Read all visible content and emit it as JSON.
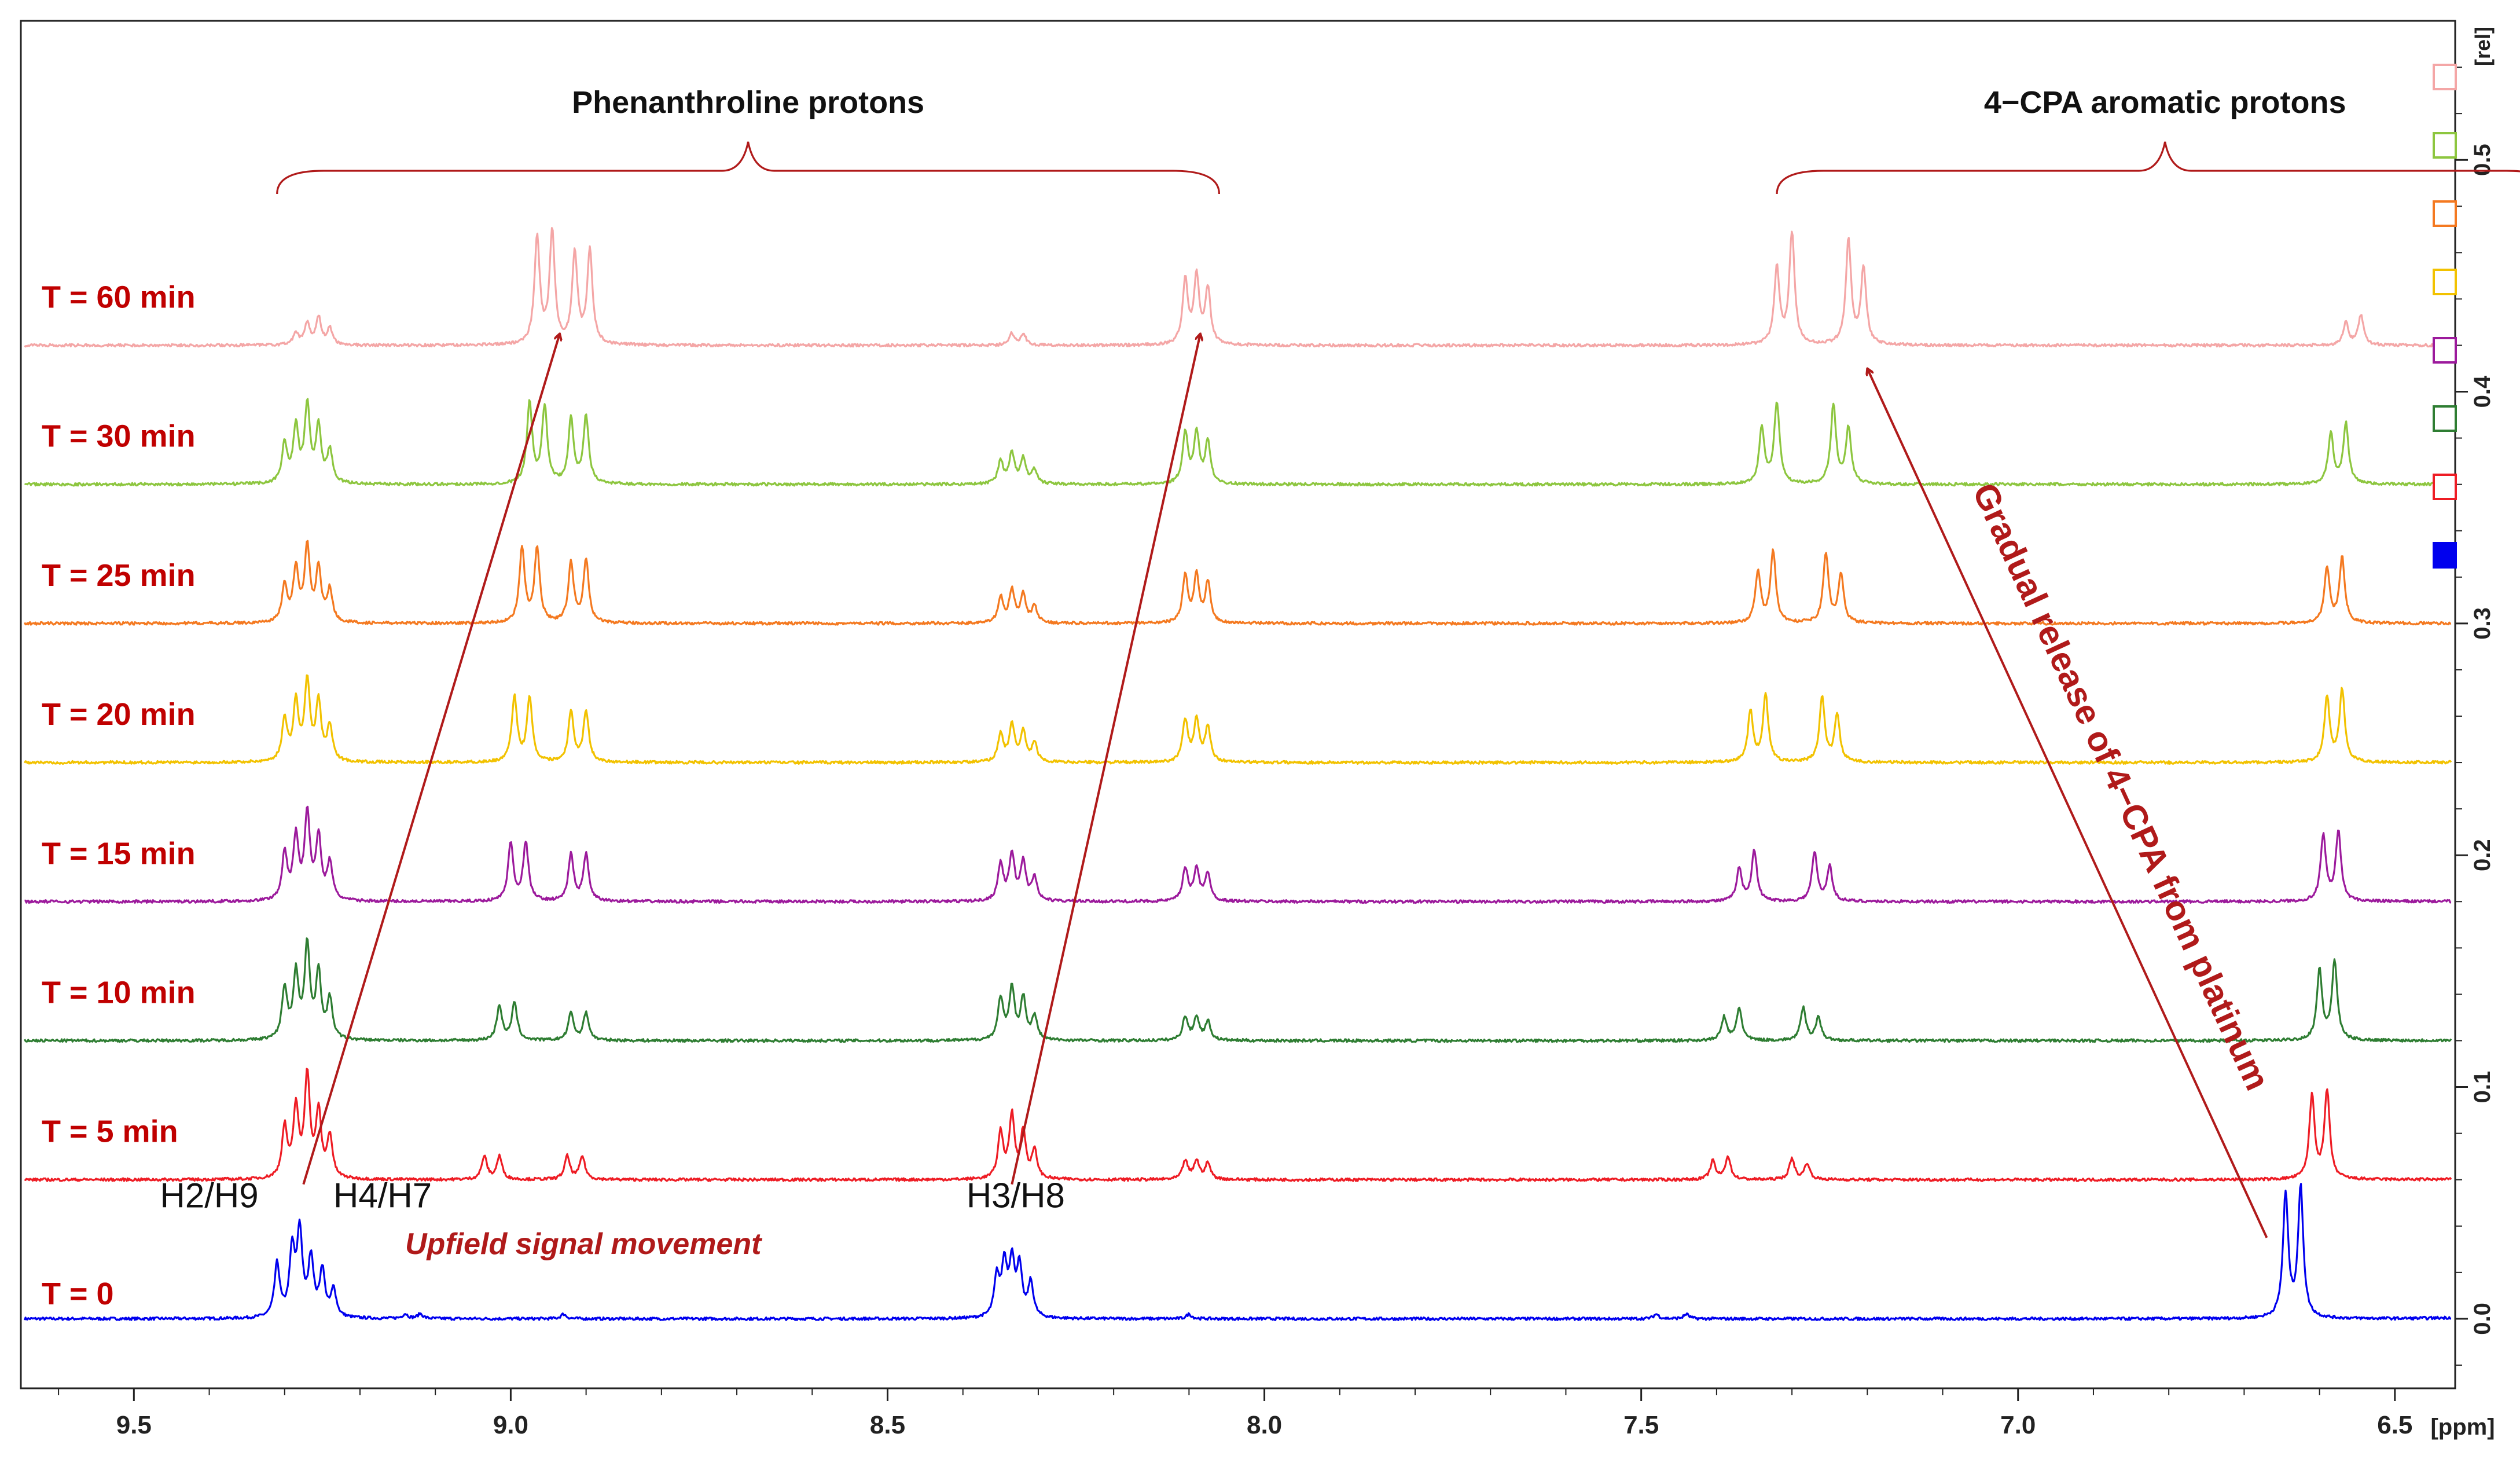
{
  "chart_data": {
    "type": "line",
    "x_axis": {
      "label": "[ppm]",
      "range": [
        9.65,
        6.42
      ],
      "reversed": true,
      "ticks": [
        "9.5",
        "9.0",
        "8.5",
        "8.0",
        "7.5",
        "7.0",
        "6.5"
      ],
      "tick_values": [
        9.5,
        9.0,
        8.5,
        8.0,
        7.5,
        7.0,
        6.5
      ]
    },
    "y_axis": {
      "label": "[rel]",
      "range": [
        -0.03,
        0.56
      ],
      "ticks": [
        "0.0",
        "0.1",
        "0.2",
        "0.3",
        "0.4",
        "0.5"
      ],
      "tick_values": [
        0.0,
        0.1,
        0.2,
        0.3,
        0.4,
        0.5
      ],
      "position": "right"
    },
    "group_labels": [
      "Phenanthroline protons",
      "4−CPA aromatic protons"
    ],
    "group_ranges": [
      [
        9.31,
        8.06
      ],
      [
        7.32,
        6.29
      ]
    ],
    "series": [
      {
        "name": "T = 0",
        "color": "#0000ee",
        "offset": 0.0,
        "peaks": [
          {
            "ppm": 9.31,
            "h": 0.023
          },
          {
            "ppm": 9.29,
            "h": 0.028
          },
          {
            "ppm": 9.28,
            "h": 0.036
          },
          {
            "ppm": 9.265,
            "h": 0.025
          },
          {
            "ppm": 9.25,
            "h": 0.02
          },
          {
            "ppm": 9.235,
            "h": 0.012
          },
          {
            "ppm": 9.14,
            "h": 0.002
          },
          {
            "ppm": 9.12,
            "h": 0.002
          },
          {
            "ppm": 8.93,
            "h": 0.002
          },
          {
            "ppm": 8.355,
            "h": 0.017
          },
          {
            "ppm": 8.345,
            "h": 0.022
          },
          {
            "ppm": 8.335,
            "h": 0.023
          },
          {
            "ppm": 8.325,
            "h": 0.021
          },
          {
            "ppm": 8.31,
            "h": 0.015
          },
          {
            "ppm": 8.1,
            "h": 0.002
          },
          {
            "ppm": 7.48,
            "h": 0.002
          },
          {
            "ppm": 7.44,
            "h": 0.002
          },
          {
            "ppm": 6.645,
            "h": 0.053
          },
          {
            "ppm": 6.625,
            "h": 0.056
          },
          {
            "ppm": 6.375,
            "h": 0.053
          },
          {
            "ppm": 6.355,
            "h": 0.051
          }
        ]
      },
      {
        "name": "T = 5 min",
        "color": "#ee1c24",
        "offset": 0.06,
        "peaks": [
          {
            "ppm": 9.3,
            "h": 0.022
          },
          {
            "ppm": 9.285,
            "h": 0.03
          },
          {
            "ppm": 9.27,
            "h": 0.044
          },
          {
            "ppm": 9.255,
            "h": 0.028
          },
          {
            "ppm": 9.24,
            "h": 0.018
          },
          {
            "ppm": 9.035,
            "h": 0.01
          },
          {
            "ppm": 9.015,
            "h": 0.01
          },
          {
            "ppm": 8.925,
            "h": 0.01
          },
          {
            "ppm": 8.905,
            "h": 0.01
          },
          {
            "ppm": 8.35,
            "h": 0.02
          },
          {
            "ppm": 8.335,
            "h": 0.027
          },
          {
            "ppm": 8.32,
            "h": 0.02
          },
          {
            "ppm": 8.305,
            "h": 0.012
          },
          {
            "ppm": 8.105,
            "h": 0.008
          },
          {
            "ppm": 8.09,
            "h": 0.008
          },
          {
            "ppm": 8.075,
            "h": 0.007
          },
          {
            "ppm": 7.405,
            "h": 0.008
          },
          {
            "ppm": 7.385,
            "h": 0.01
          },
          {
            "ppm": 7.3,
            "h": 0.009
          },
          {
            "ppm": 7.28,
            "h": 0.007
          },
          {
            "ppm": 6.61,
            "h": 0.036
          },
          {
            "ppm": 6.59,
            "h": 0.038
          },
          {
            "ppm": 6.355,
            "h": 0.038
          },
          {
            "ppm": 6.335,
            "h": 0.035
          }
        ]
      },
      {
        "name": "T = 10 min",
        "color": "#2e7d32",
        "offset": 0.12,
        "peaks": [
          {
            "ppm": 9.3,
            "h": 0.022
          },
          {
            "ppm": 9.285,
            "h": 0.028
          },
          {
            "ppm": 9.27,
            "h": 0.04
          },
          {
            "ppm": 9.255,
            "h": 0.028
          },
          {
            "ppm": 9.24,
            "h": 0.017
          },
          {
            "ppm": 9.015,
            "h": 0.015
          },
          {
            "ppm": 8.995,
            "h": 0.016
          },
          {
            "ppm": 8.92,
            "h": 0.012
          },
          {
            "ppm": 8.9,
            "h": 0.012
          },
          {
            "ppm": 8.35,
            "h": 0.018
          },
          {
            "ppm": 8.335,
            "h": 0.022
          },
          {
            "ppm": 8.32,
            "h": 0.018
          },
          {
            "ppm": 8.305,
            "h": 0.01
          },
          {
            "ppm": 8.105,
            "h": 0.01
          },
          {
            "ppm": 8.09,
            "h": 0.01
          },
          {
            "ppm": 8.075,
            "h": 0.008
          },
          {
            "ppm": 7.39,
            "h": 0.01
          },
          {
            "ppm": 7.37,
            "h": 0.014
          },
          {
            "ppm": 7.285,
            "h": 0.014
          },
          {
            "ppm": 7.265,
            "h": 0.01
          },
          {
            "ppm": 6.6,
            "h": 0.03
          },
          {
            "ppm": 6.58,
            "h": 0.034
          },
          {
            "ppm": 6.345,
            "h": 0.034
          },
          {
            "ppm": 6.325,
            "h": 0.031
          }
        ]
      },
      {
        "name": "T = 15 min",
        "color": "#9c1a9c",
        "offset": 0.18,
        "peaks": [
          {
            "ppm": 9.3,
            "h": 0.02
          },
          {
            "ppm": 9.285,
            "h": 0.027
          },
          {
            "ppm": 9.27,
            "h": 0.037
          },
          {
            "ppm": 9.255,
            "h": 0.027
          },
          {
            "ppm": 9.24,
            "h": 0.016
          },
          {
            "ppm": 9.0,
            "h": 0.025
          },
          {
            "ppm": 8.98,
            "h": 0.025
          },
          {
            "ppm": 8.92,
            "h": 0.02
          },
          {
            "ppm": 8.9,
            "h": 0.02
          },
          {
            "ppm": 8.35,
            "h": 0.016
          },
          {
            "ppm": 8.335,
            "h": 0.02
          },
          {
            "ppm": 8.32,
            "h": 0.017
          },
          {
            "ppm": 8.305,
            "h": 0.01
          },
          {
            "ppm": 8.105,
            "h": 0.014
          },
          {
            "ppm": 8.09,
            "h": 0.014
          },
          {
            "ppm": 8.075,
            "h": 0.012
          },
          {
            "ppm": 7.37,
            "h": 0.014
          },
          {
            "ppm": 7.35,
            "h": 0.022
          },
          {
            "ppm": 7.27,
            "h": 0.021
          },
          {
            "ppm": 7.25,
            "h": 0.015
          },
          {
            "ppm": 6.595,
            "h": 0.028
          },
          {
            "ppm": 6.575,
            "h": 0.03
          },
          {
            "ppm": 6.335,
            "h": 0.032
          },
          {
            "ppm": 6.315,
            "h": 0.029
          }
        ]
      },
      {
        "name": "T = 20 min",
        "color": "#f2c200",
        "offset": 0.24,
        "peaks": [
          {
            "ppm": 9.3,
            "h": 0.018
          },
          {
            "ppm": 9.285,
            "h": 0.025
          },
          {
            "ppm": 9.27,
            "h": 0.034
          },
          {
            "ppm": 9.255,
            "h": 0.025
          },
          {
            "ppm": 9.24,
            "h": 0.015
          },
          {
            "ppm": 8.995,
            "h": 0.028
          },
          {
            "ppm": 8.975,
            "h": 0.028
          },
          {
            "ppm": 8.92,
            "h": 0.022
          },
          {
            "ppm": 8.9,
            "h": 0.022
          },
          {
            "ppm": 8.35,
            "h": 0.012
          },
          {
            "ppm": 8.335,
            "h": 0.016
          },
          {
            "ppm": 8.32,
            "h": 0.013
          },
          {
            "ppm": 8.305,
            "h": 0.008
          },
          {
            "ppm": 8.105,
            "h": 0.018
          },
          {
            "ppm": 8.09,
            "h": 0.018
          },
          {
            "ppm": 8.075,
            "h": 0.015
          },
          {
            "ppm": 7.355,
            "h": 0.022
          },
          {
            "ppm": 7.335,
            "h": 0.029
          },
          {
            "ppm": 7.26,
            "h": 0.028
          },
          {
            "ppm": 7.24,
            "h": 0.02
          },
          {
            "ppm": 6.59,
            "h": 0.028
          },
          {
            "ppm": 6.57,
            "h": 0.031
          },
          {
            "ppm": 6.33,
            "h": 0.032
          },
          {
            "ppm": 6.31,
            "h": 0.028
          }
        ]
      },
      {
        "name": "T = 25 min",
        "color": "#f47920",
        "offset": 0.3,
        "peaks": [
          {
            "ppm": 9.3,
            "h": 0.016
          },
          {
            "ppm": 9.285,
            "h": 0.023
          },
          {
            "ppm": 9.27,
            "h": 0.032
          },
          {
            "ppm": 9.255,
            "h": 0.023
          },
          {
            "ppm": 9.24,
            "h": 0.014
          },
          {
            "ppm": 8.985,
            "h": 0.032
          },
          {
            "ppm": 8.965,
            "h": 0.032
          },
          {
            "ppm": 8.92,
            "h": 0.026
          },
          {
            "ppm": 8.9,
            "h": 0.027
          },
          {
            "ppm": 8.35,
            "h": 0.011
          },
          {
            "ppm": 8.335,
            "h": 0.014
          },
          {
            "ppm": 8.32,
            "h": 0.012
          },
          {
            "ppm": 8.305,
            "h": 0.007
          },
          {
            "ppm": 8.105,
            "h": 0.02
          },
          {
            "ppm": 8.09,
            "h": 0.02
          },
          {
            "ppm": 8.075,
            "h": 0.017
          },
          {
            "ppm": 7.345,
            "h": 0.022
          },
          {
            "ppm": 7.325,
            "h": 0.031
          },
          {
            "ppm": 7.255,
            "h": 0.03
          },
          {
            "ppm": 7.235,
            "h": 0.021
          },
          {
            "ppm": 6.59,
            "h": 0.024
          },
          {
            "ppm": 6.57,
            "h": 0.028
          },
          {
            "ppm": 6.33,
            "h": 0.029
          },
          {
            "ppm": 6.31,
            "h": 0.025
          }
        ]
      },
      {
        "name": "T = 30 min",
        "color": "#8dc63f",
        "offset": 0.36,
        "peaks": [
          {
            "ppm": 9.3,
            "h": 0.017
          },
          {
            "ppm": 9.285,
            "h": 0.024
          },
          {
            "ppm": 9.27,
            "h": 0.033
          },
          {
            "ppm": 9.255,
            "h": 0.024
          },
          {
            "ppm": 9.24,
            "h": 0.014
          },
          {
            "ppm": 8.975,
            "h": 0.035
          },
          {
            "ppm": 8.955,
            "h": 0.033
          },
          {
            "ppm": 8.92,
            "h": 0.028
          },
          {
            "ppm": 8.9,
            "h": 0.029
          },
          {
            "ppm": 8.35,
            "h": 0.01
          },
          {
            "ppm": 8.335,
            "h": 0.013
          },
          {
            "ppm": 8.32,
            "h": 0.011
          },
          {
            "ppm": 8.305,
            "h": 0.006
          },
          {
            "ppm": 8.105,
            "h": 0.022
          },
          {
            "ppm": 8.09,
            "h": 0.022
          },
          {
            "ppm": 8.075,
            "h": 0.018
          },
          {
            "ppm": 7.34,
            "h": 0.024
          },
          {
            "ppm": 7.32,
            "h": 0.035
          },
          {
            "ppm": 7.245,
            "h": 0.034
          },
          {
            "ppm": 7.225,
            "h": 0.024
          },
          {
            "ppm": 6.585,
            "h": 0.022
          },
          {
            "ppm": 6.565,
            "h": 0.026
          },
          {
            "ppm": 6.33,
            "h": 0.026
          },
          {
            "ppm": 6.31,
            "h": 0.022
          }
        ]
      },
      {
        "name": "T = 60 min",
        "color": "#f4a6a6",
        "offset": 0.42,
        "peaks": [
          {
            "ppm": 9.285,
            "h": 0.005
          },
          {
            "ppm": 9.27,
            "h": 0.009
          },
          {
            "ppm": 9.255,
            "h": 0.012
          },
          {
            "ppm": 9.24,
            "h": 0.007
          },
          {
            "ppm": 8.965,
            "h": 0.046
          },
          {
            "ppm": 8.945,
            "h": 0.048
          },
          {
            "ppm": 8.915,
            "h": 0.039
          },
          {
            "ppm": 8.895,
            "h": 0.04
          },
          {
            "ppm": 8.335,
            "h": 0.005
          },
          {
            "ppm": 8.32,
            "h": 0.005
          },
          {
            "ppm": 8.105,
            "h": 0.028
          },
          {
            "ppm": 8.09,
            "h": 0.029
          },
          {
            "ppm": 8.075,
            "h": 0.024
          },
          {
            "ppm": 7.32,
            "h": 0.033
          },
          {
            "ppm": 7.3,
            "h": 0.048
          },
          {
            "ppm": 7.225,
            "h": 0.045
          },
          {
            "ppm": 7.205,
            "h": 0.033
          },
          {
            "ppm": 6.565,
            "h": 0.01
          },
          {
            "ppm": 6.545,
            "h": 0.013
          },
          {
            "ppm": 6.32,
            "h": 0.011
          },
          {
            "ppm": 6.3,
            "h": 0.009
          }
        ]
      }
    ],
    "annotations": {
      "peak_labels": [
        {
          "text": "H2/H9",
          "ppm": 9.4
        },
        {
          "text": "H4/H7",
          "ppm": 9.17
        },
        {
          "text": "H3/H8",
          "ppm": 8.33
        }
      ],
      "upfield_text": "Upfield signal movement",
      "release_text": "Gradual release of 4−CPA from platinum",
      "arrows": [
        {
          "from": {
            "ppm": 9.275,
            "y": 0.058
          },
          "to": {
            "ppm": 8.935,
            "y": 0.425
          }
        },
        {
          "from": {
            "ppm": 8.335,
            "y": 0.058
          },
          "to": {
            "ppm": 8.085,
            "y": 0.425
          }
        },
        {
          "from": {
            "ppm": 6.67,
            "y": 0.035
          },
          "to": {
            "ppm": 7.2,
            "y": 0.41
          }
        }
      ]
    },
    "legend": {
      "placement": "right",
      "swatches": [
        {
          "color": "#f4a6a6",
          "filled": false
        },
        {
          "color": "#8dc63f",
          "filled": false
        },
        {
          "color": "#f47920",
          "filled": false
        },
        {
          "color": "#f2c200",
          "filled": false
        },
        {
          "color": "#9c1a9c",
          "filled": false
        },
        {
          "color": "#2e7d32",
          "filled": false
        },
        {
          "color": "#ee1c24",
          "filled": false
        },
        {
          "color": "#0000ee",
          "filled": true
        }
      ]
    },
    "colors": {
      "annotation": "#b01a1a",
      "label": "#c00000",
      "axis": "#222222"
    }
  }
}
